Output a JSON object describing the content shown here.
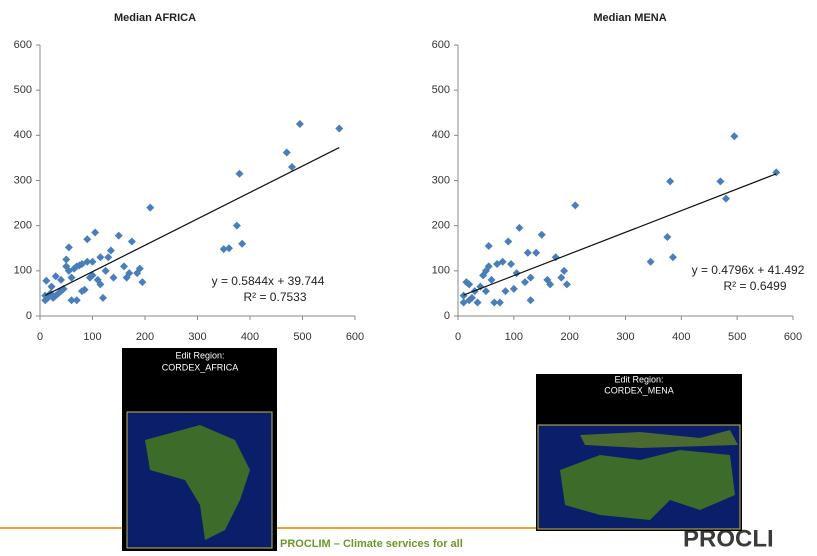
{
  "chart_data": [
    {
      "type": "scatter",
      "title": "Median AFRICA",
      "color": "#4a7ebb",
      "x": [
        10,
        10,
        12,
        15,
        20,
        22,
        25,
        30,
        30,
        35,
        40,
        40,
        45,
        50,
        50,
        55,
        55,
        60,
        60,
        65,
        70,
        70,
        75,
        80,
        80,
        85,
        90,
        90,
        95,
        100,
        100,
        105,
        110,
        115,
        115,
        120,
        125,
        130,
        135,
        140,
        150,
        160,
        165,
        170,
        175,
        185,
        190,
        195,
        210,
        350,
        360,
        375,
        380,
        385,
        470,
        480,
        495,
        570
      ],
      "y": [
        35,
        45,
        78,
        40,
        50,
        65,
        40,
        45,
        88,
        50,
        55,
        80,
        60,
        110,
        125,
        100,
        152,
        35,
        85,
        105,
        35,
        110,
        112,
        55,
        115,
        58,
        120,
        170,
        85,
        90,
        120,
        185,
        80,
        70,
        130,
        40,
        100,
        130,
        145,
        85,
        178,
        110,
        85,
        95,
        165,
        95,
        105,
        75,
        240,
        148,
        150,
        200,
        315,
        160,
        362,
        330,
        425,
        415
      ],
      "xlim": [
        0,
        600
      ],
      "xticks": [
        0,
        100,
        200,
        300,
        400,
        500,
        600
      ],
      "ylim": [
        0,
        600
      ],
      "yticks": [
        0,
        100,
        200,
        300,
        400,
        500,
        600
      ],
      "trendline": {
        "slope": 0.5844,
        "intercept": 39.744,
        "equation": "y = 0.5844x + 39.744",
        "r2": "R² = 0.7533"
      }
    },
    {
      "type": "scatter",
      "title": "Median MENA",
      "color": "#4a7ebb",
      "x": [
        10,
        10,
        15,
        20,
        20,
        25,
        30,
        35,
        40,
        45,
        50,
        50,
        55,
        55,
        60,
        65,
        70,
        75,
        80,
        85,
        90,
        95,
        100,
        105,
        110,
        120,
        125,
        130,
        130,
        140,
        150,
        160,
        165,
        175,
        185,
        190,
        195,
        210,
        345,
        375,
        380,
        385,
        470,
        480,
        495,
        570
      ],
      "y": [
        30,
        45,
        75,
        35,
        70,
        40,
        55,
        30,
        65,
        90,
        55,
        100,
        110,
        155,
        80,
        30,
        115,
        30,
        120,
        55,
        165,
        115,
        60,
        95,
        195,
        75,
        140,
        35,
        85,
        140,
        180,
        80,
        70,
        130,
        85,
        100,
        70,
        245,
        120,
        175,
        298,
        130,
        298,
        260,
        398,
        318
      ],
      "xlim": [
        0,
        600
      ],
      "xticks": [
        0,
        100,
        200,
        300,
        400,
        500,
        600
      ],
      "ylim": [
        0,
        600
      ],
      "yticks": [
        0,
        100,
        200,
        300,
        400,
        500,
        600
      ],
      "trendline": {
        "slope": 0.4796,
        "intercept": 41.492,
        "equation": "y = 0.4796x + 41.492",
        "r2": "R² = 0.6499"
      }
    }
  ],
  "maps": [
    {
      "heading": "Edit Region:",
      "region": "CORDEX_AFRICA"
    },
    {
      "heading": "Edit Region:",
      "region": "CORDEX_MENA"
    }
  ],
  "footer": {
    "text": "PROCLIM – Climate services for all",
    "logo": "PROCLI"
  }
}
